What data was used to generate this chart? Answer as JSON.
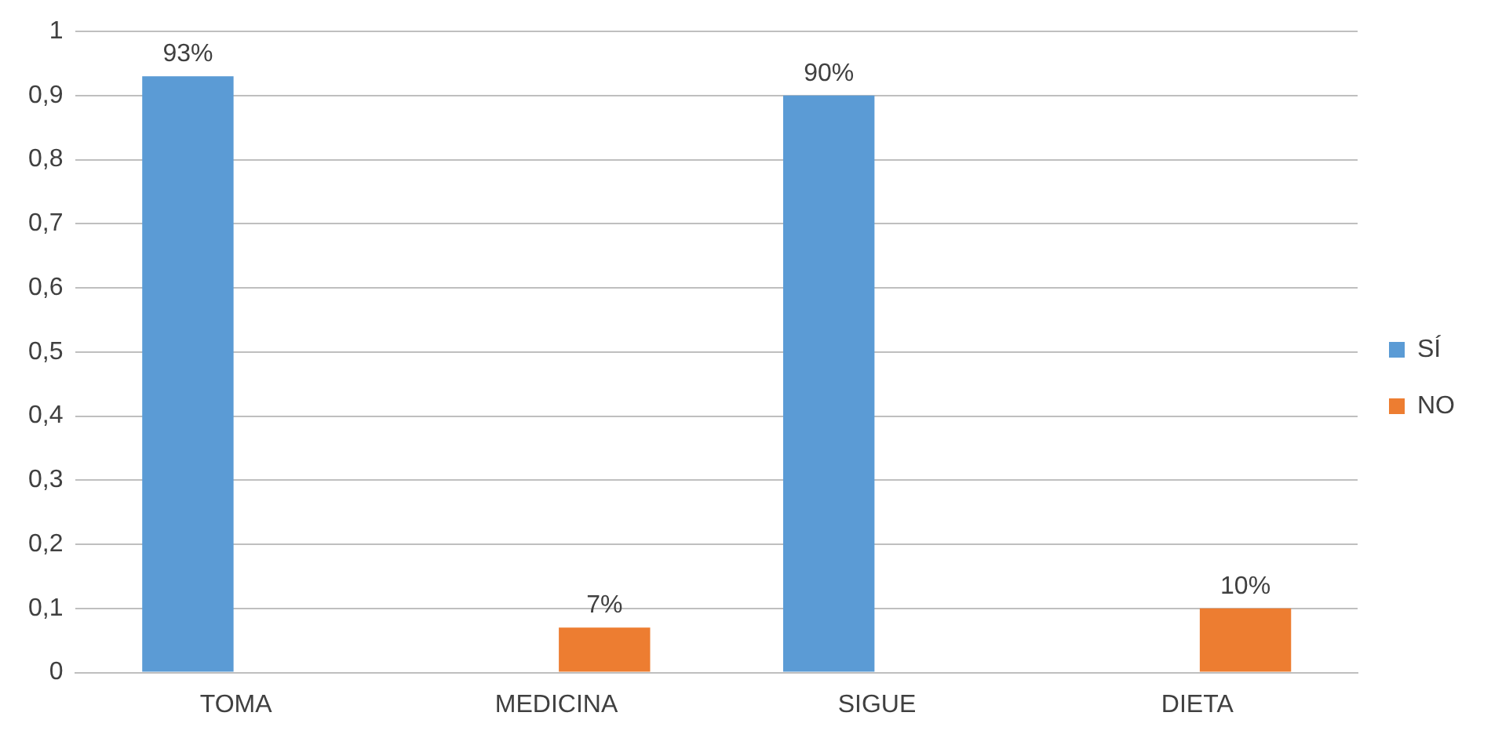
{
  "chart_data": {
    "type": "bar",
    "categories": [
      "TOMA",
      "MEDICINA",
      "SIGUE",
      "DIETA"
    ],
    "series": [
      {
        "name": "SÍ",
        "color": "#5b9bd5",
        "values": [
          0.93,
          null,
          0.9,
          null
        ],
        "value_labels": [
          "93%",
          null,
          "90%",
          null
        ]
      },
      {
        "name": "NO",
        "color": "#ed7d31",
        "values": [
          null,
          0.07,
          null,
          0.1
        ],
        "value_labels": [
          null,
          "7%",
          null,
          "10%"
        ]
      }
    ],
    "ylim": [
      0,
      1
    ],
    "yticks": [
      0,
      {
        "value": 0.1,
        "label": "0,1"
      },
      {
        "value": 0.2,
        "label": "0,2"
      },
      {
        "value": 0.3,
        "label": "0,3"
      },
      {
        "value": 0.4,
        "label": "0,4"
      },
      {
        "value": 0.5,
        "label": "0,5"
      },
      {
        "value": 0.6,
        "label": "0,6"
      },
      {
        "value": 0.7,
        "label": "0,7"
      },
      {
        "value": 0.8,
        "label": "0,8"
      },
      {
        "value": 0.9,
        "label": "0,9"
      },
      1
    ],
    "grid": "y",
    "legend": "right"
  }
}
